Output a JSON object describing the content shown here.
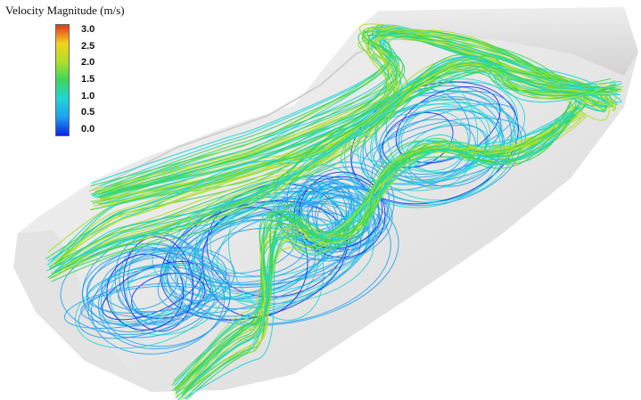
{
  "colorbar": {
    "title": "Velocity Magnitude (m/s)",
    "ticks": [
      "3.0",
      "2.5",
      "2.0",
      "1.5",
      "1.0",
      "0.5",
      "0.0"
    ],
    "range": [
      0.0,
      3.0
    ],
    "colormap": [
      "#0a24e6",
      "#1ea0f0",
      "#1fd6d6",
      "#3ad65a",
      "#aee02a",
      "#f2d21e",
      "#e8321e"
    ]
  }
}
